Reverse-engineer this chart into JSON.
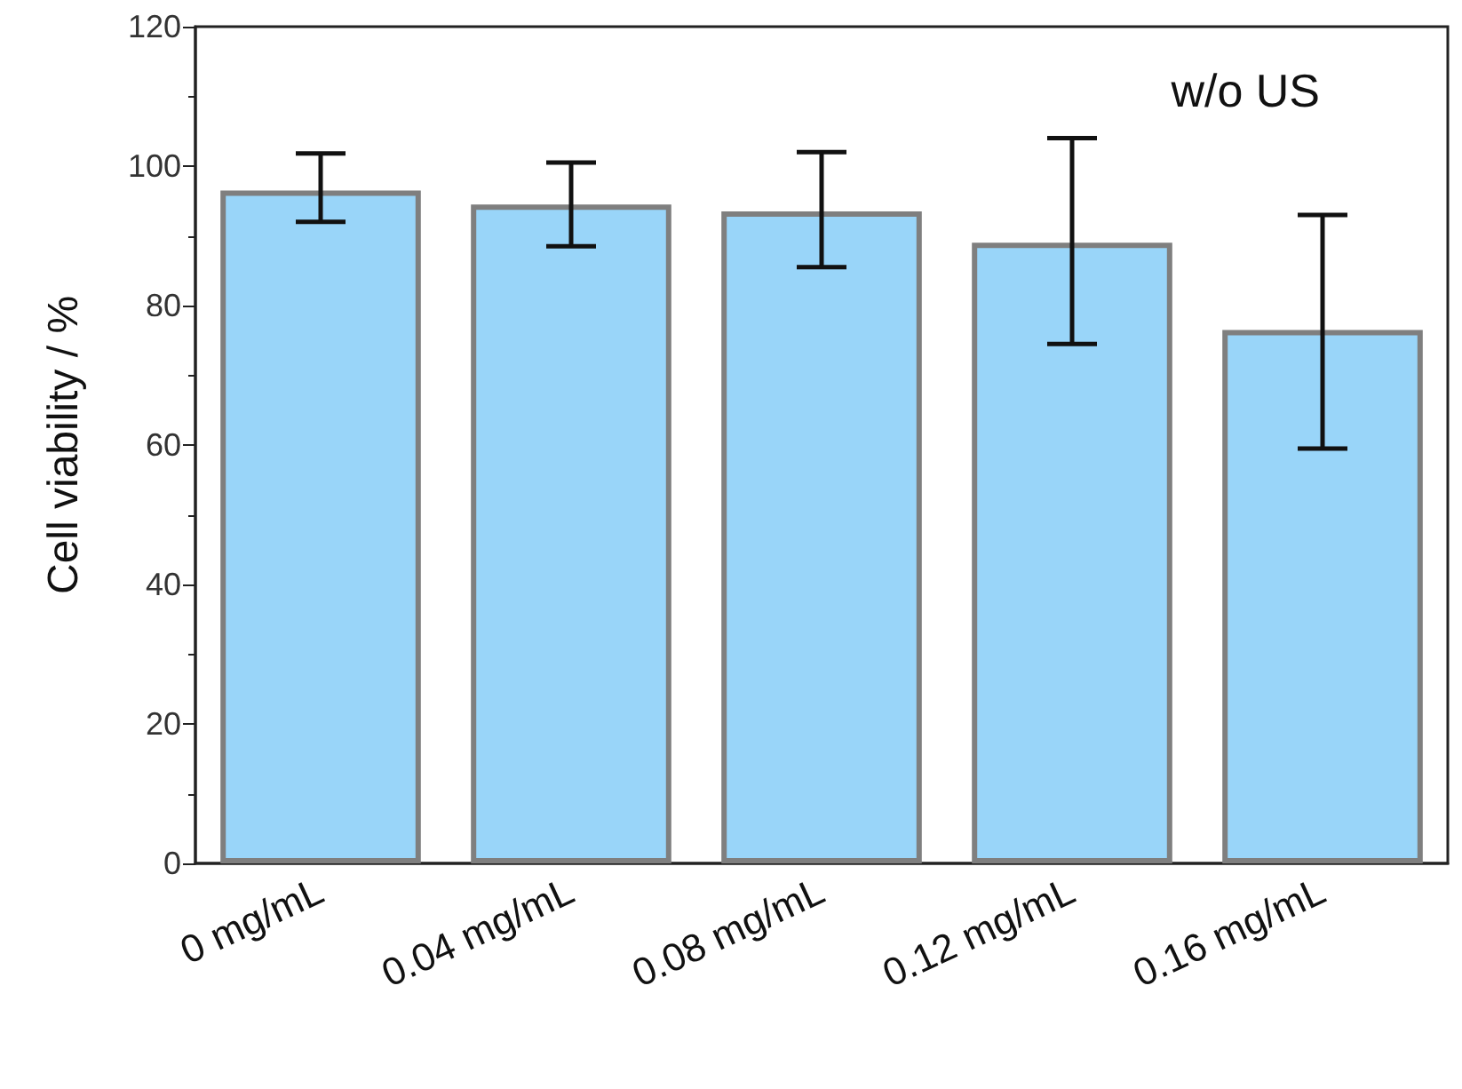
{
  "chart_data": {
    "type": "bar",
    "ylabel": "Cell viability / %",
    "categories": [
      "0 mg/mL",
      "0.04 mg/mL",
      "0.08 mg/mL",
      "0.12 mg/mL",
      "0.16 mg/mL"
    ],
    "values": [
      96.5,
      94.5,
      93.5,
      89,
      76.5
    ],
    "errors": [
      [
        92,
        101.8
      ],
      [
        88.5,
        100.5
      ],
      [
        85.5,
        102
      ],
      [
        74.5,
        104
      ],
      [
        59.5,
        93
      ]
    ],
    "color": "#99d5f9",
    "ylim": [
      0,
      120
    ],
    "yticks": [
      0,
      20,
      40,
      60,
      80,
      100,
      120
    ],
    "annotations": [
      "w/o US"
    ]
  }
}
